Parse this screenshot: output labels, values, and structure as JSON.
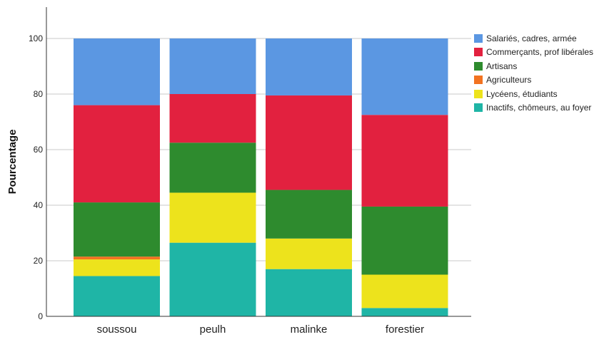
{
  "chart_data": {
    "type": "bar",
    "stacked": true,
    "categories": [
      "soussou",
      "peulh",
      "malinke",
      "forestier"
    ],
    "ylabel": "Pourcentage",
    "xlabel": "",
    "ylim": [
      0,
      110
    ],
    "yticks": [
      0,
      20,
      40,
      60,
      80,
      100
    ],
    "grid": true,
    "legend_position": "right",
    "series": [
      {
        "name": "Inactifs, chômeurs, au foyer",
        "color": "#1fb5a6",
        "values": [
          14.5,
          26.5,
          17,
          3
        ]
      },
      {
        "name": "Lycéens, étudiants",
        "color": "#ede31c",
        "values": [
          6,
          18,
          11,
          12
        ]
      },
      {
        "name": "Agriculteurs",
        "color": "#f27321",
        "values": [
          1,
          0,
          0,
          0
        ]
      },
      {
        "name": "Artisans",
        "color": "#2e8b2e",
        "values": [
          19.5,
          18,
          17.5,
          24.5
        ]
      },
      {
        "name": "Commerçants, prof libérales",
        "color": "#e2213f",
        "values": [
          35,
          17.5,
          34,
          33
        ]
      },
      {
        "name": "Salariés, cadres, armée",
        "color": "#5b97e2",
        "values": [
          24,
          20,
          20.5,
          27.5
        ]
      }
    ],
    "legend_order": [
      "Salariés, cadres, armée",
      "Commerçants, prof libérales",
      "Artisans",
      "Agriculteurs",
      "Lycéens, étudiants",
      "Inactifs, chômeurs, au foyer"
    ]
  }
}
